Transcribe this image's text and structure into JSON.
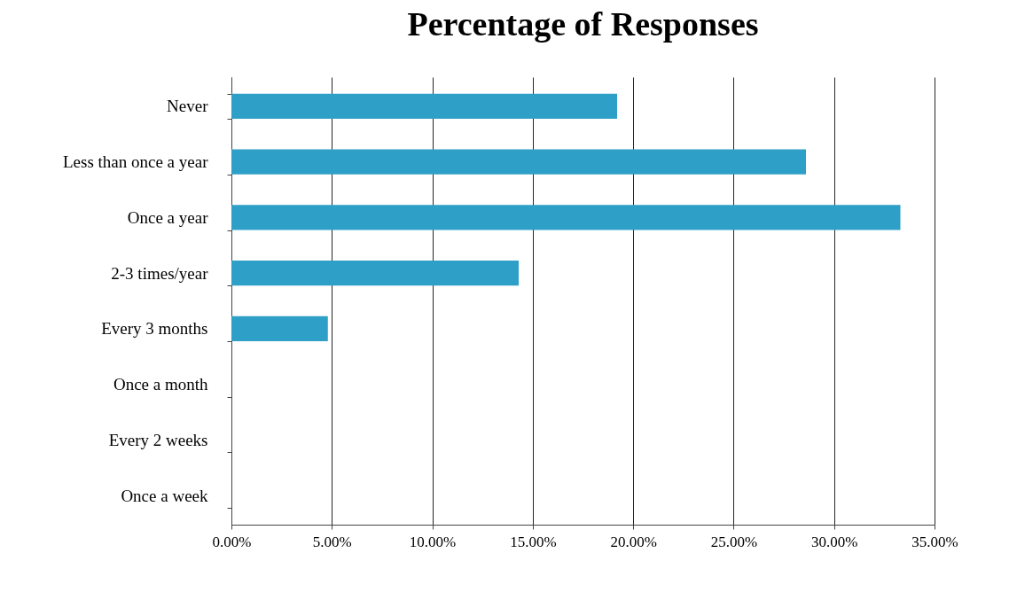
{
  "chart_data": {
    "type": "bar",
    "orientation": "horizontal",
    "title": "Percentage of Responses",
    "categories": [
      "Never",
      "Less than once a year",
      "Once a year",
      "2-3 times/year",
      "Every 3 months",
      "Once a month",
      "Every 2 weeks",
      "Once a week"
    ],
    "values": [
      19.2,
      28.6,
      33.3,
      14.3,
      4.8,
      0,
      0,
      0
    ],
    "color": "#2e9fc6",
    "xlim": [
      0,
      35
    ],
    "xticks": [
      {
        "value": 0,
        "label": "0.00%"
      },
      {
        "value": 5,
        "label": "5.00%"
      },
      {
        "value": 10,
        "label": "10.00%"
      },
      {
        "value": 15,
        "label": "15.00%"
      },
      {
        "value": 20,
        "label": "20.00%"
      },
      {
        "value": 25,
        "label": "25.00%"
      },
      {
        "value": 30,
        "label": "30.00%"
      },
      {
        "value": 35,
        "label": "35.00%"
      }
    ],
    "grid": "x"
  }
}
